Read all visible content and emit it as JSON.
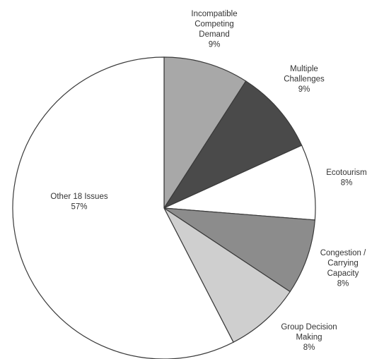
{
  "chart_data": {
    "type": "pie",
    "title": "",
    "start": "top",
    "direction": "clockwise",
    "slices": [
      {
        "label": [
          "Incompatible",
          "Competing",
          "Demand"
        ],
        "pct_label": "9%",
        "value": 9,
        "color": "#a8a8a8"
      },
      {
        "label": [
          "Multiple",
          "Challenges"
        ],
        "pct_label": "9%",
        "value": 9,
        "color": "#4a4a4a"
      },
      {
        "label": [
          "Ecotourism"
        ],
        "pct_label": "8%",
        "value": 8,
        "color": "#ffffff"
      },
      {
        "label": [
          "Congestion /",
          "Carrying",
          "Capacity"
        ],
        "pct_label": "8%",
        "value": 8,
        "color": "#8c8c8c"
      },
      {
        "label": [
          "Group Decision",
          "Making"
        ],
        "pct_label": "8%",
        "value": 8,
        "color": "#cfcfcf"
      },
      {
        "label": [
          "Other 18 Issues"
        ],
        "pct_label": "57%",
        "value": 57,
        "color": "#ffffff"
      }
    ]
  }
}
